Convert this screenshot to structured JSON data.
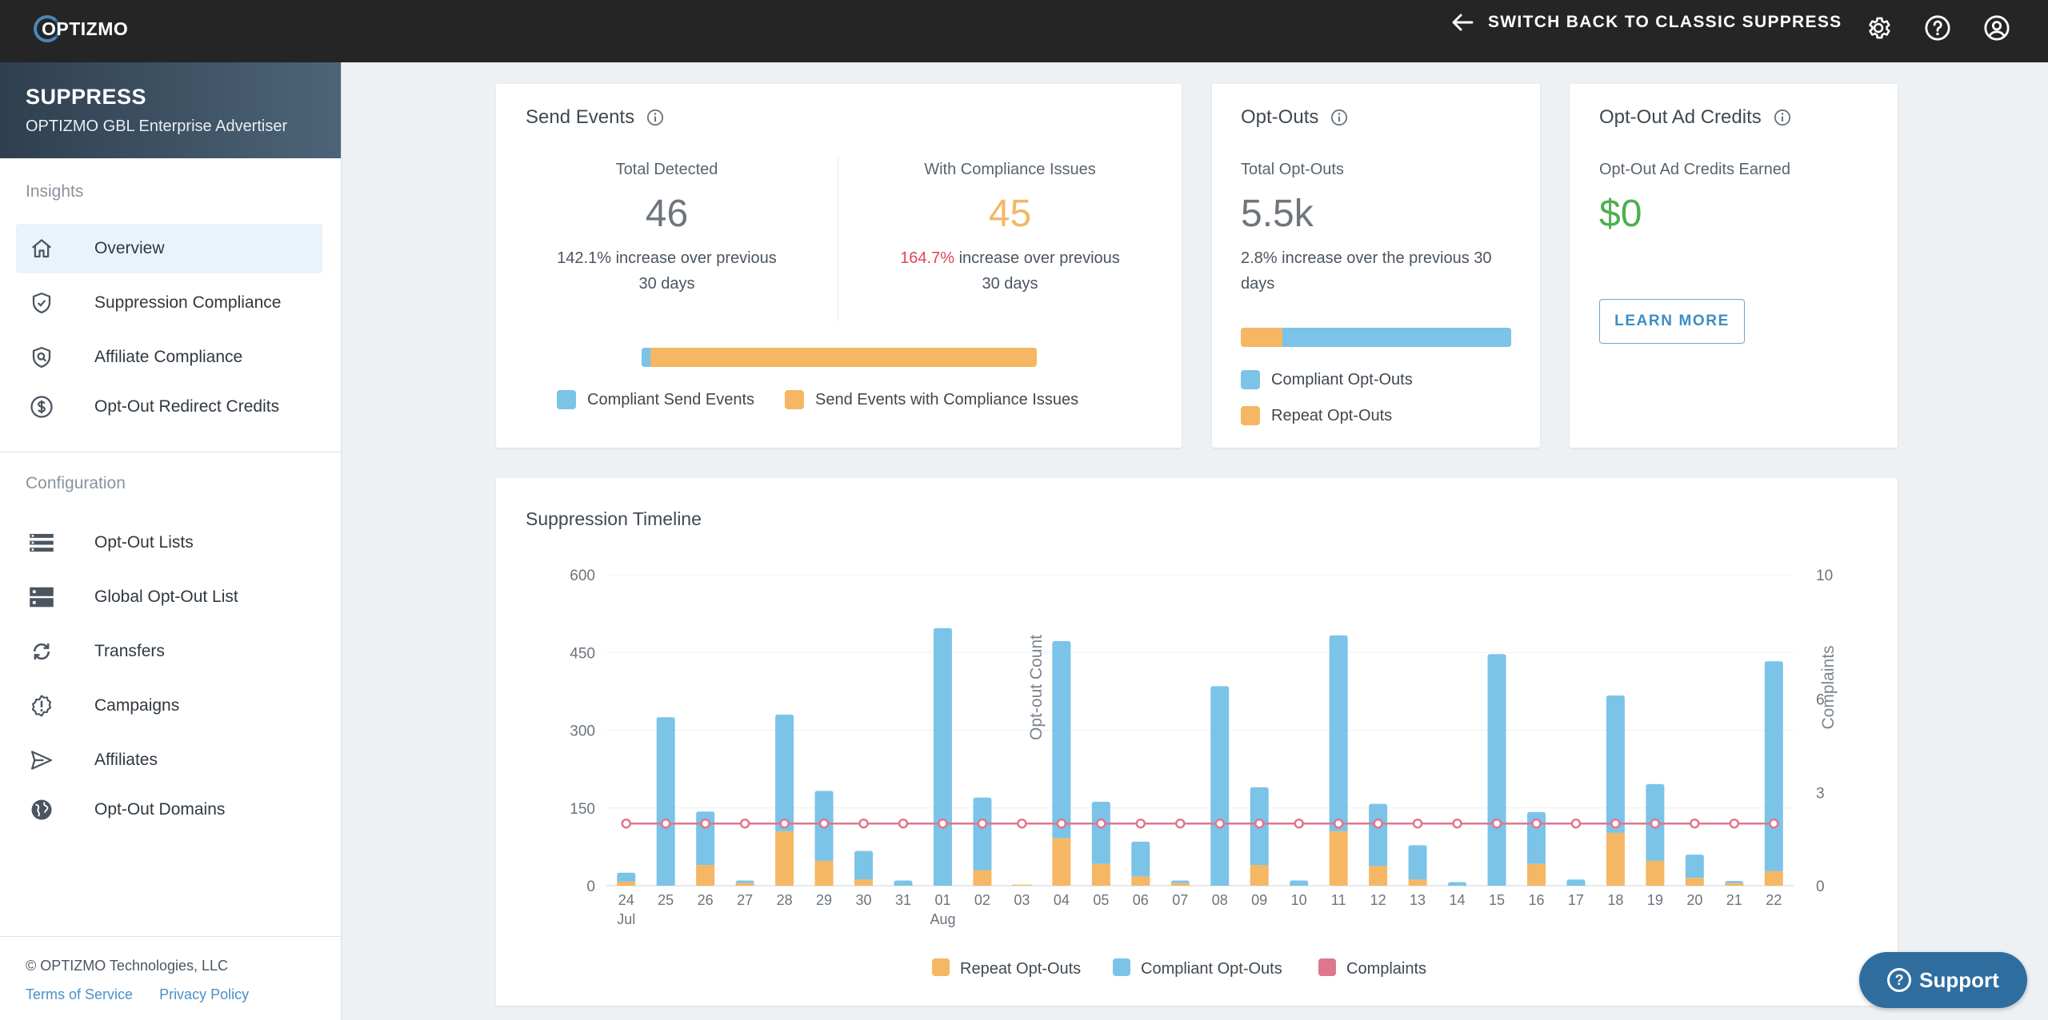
{
  "topbar": {
    "logo_text": "OPTIZMO",
    "switch_back_label": "SWITCH BACK TO CLASSIC SUPPRESS",
    "icons": [
      "arrow-left-icon",
      "gear-icon",
      "help-icon",
      "account-icon"
    ]
  },
  "sidebar": {
    "title": "SUPPRESS",
    "subtitle": "OPTIZMO GBL Enterprise Advertiser",
    "insights_label": "Insights",
    "insights_items": [
      {
        "label": "Overview",
        "icon": "home-icon",
        "active": true
      },
      {
        "label": "Suppression Compliance",
        "icon": "shield-check-icon"
      },
      {
        "label": "Affiliate Compliance",
        "icon": "shield-search-icon"
      },
      {
        "label": "Opt-Out Redirect Credits",
        "icon": "dollar-circle-icon"
      }
    ],
    "configuration_label": "Configuration",
    "configuration_items": [
      {
        "label": "Opt-Out Lists",
        "icon": "list-icon"
      },
      {
        "label": "Global Opt-Out List",
        "icon": "server-icon"
      },
      {
        "label": "Transfers",
        "icon": "sync-icon"
      },
      {
        "label": "Campaigns",
        "icon": "alert-badge-icon"
      },
      {
        "label": "Affiliates",
        "icon": "send-icon"
      },
      {
        "label": "Opt-Out Domains",
        "icon": "globe-icon"
      }
    ],
    "copyright": "© OPTIZMO Technologies, LLC",
    "terms_label": "Terms of Service",
    "privacy_label": "Privacy Policy"
  },
  "send_events": {
    "title": "Send Events",
    "total_detected_label": "Total Detected",
    "total_detected_value": "46",
    "total_detected_desc_line1": "142.1% increase over previous",
    "total_detected_desc_line2": "30 days",
    "compliance_issues_label": "With Compliance Issues",
    "compliance_issues_value": "45",
    "compliance_issues_pct": "164.7%",
    "compliance_issues_desc_line1_rest": " increase over previous",
    "compliance_issues_desc_line2": "30 days",
    "bar_compliant_fraction": 0.022,
    "legend_compliant": "Compliant Send Events",
    "legend_issues": "Send Events with Compliance Issues"
  },
  "opt_outs": {
    "title": "Opt-Outs",
    "total_label": "Total Opt-Outs",
    "total_value": "5.5k",
    "desc_line1": "2.8% increase over the previous 30",
    "desc_line2": "days",
    "bar_repeat_fraction": 0.155,
    "legend_compliant": "Compliant Opt-Outs",
    "legend_repeat": "Repeat Opt-Outs"
  },
  "ad_credits": {
    "title": "Opt-Out Ad Credits",
    "earned_label": "Opt-Out Ad Credits Earned",
    "earned_value": "$0",
    "learn_more_label": "LEARN MORE"
  },
  "support": {
    "label": "Support"
  },
  "colors": {
    "blue": "#7cc3e8",
    "orange": "#f5b763",
    "pink": "#e0768e",
    "red_text": "#e0445a",
    "green": "#4caf50"
  },
  "chart_data": {
    "type": "bar",
    "title": "Suppression Timeline",
    "ylabel": "Opt-out Count",
    "y2label": "Complaints",
    "ylim": [
      0,
      600
    ],
    "y_ticks": [
      0,
      150,
      300,
      450,
      600
    ],
    "y2lim": [
      0,
      10
    ],
    "y2_ticks": [
      0,
      3,
      6,
      10
    ],
    "stacked": true,
    "grid": true,
    "legend_position": "bottom",
    "categories": [
      "24",
      "25",
      "26",
      "27",
      "28",
      "29",
      "30",
      "31",
      "01",
      "02",
      "03",
      "04",
      "05",
      "06",
      "07",
      "08",
      "09",
      "10",
      "11",
      "12",
      "13",
      "14",
      "15",
      "16",
      "17",
      "18",
      "19",
      "20",
      "21",
      "22"
    ],
    "month_labels": [
      {
        "index": 0,
        "label": "Jul"
      },
      {
        "index": 8,
        "label": "Aug"
      }
    ],
    "series": [
      {
        "name": "Repeat Opt-Outs",
        "kind": "bar",
        "color": "#f5b763",
        "values": [
          8,
          0,
          40,
          5,
          105,
          48,
          12,
          0,
          0,
          30,
          2,
          92,
          42,
          18,
          5,
          0,
          40,
          0,
          105,
          38,
          12,
          0,
          0,
          42,
          0,
          102,
          48,
          15,
          5,
          28
        ]
      },
      {
        "name": "Compliant Opt-Outs",
        "kind": "bar",
        "color": "#7cc3e8",
        "values": [
          17,
          325,
          103,
          5,
          225,
          135,
          55,
          10,
          497,
          140,
          0,
          380,
          120,
          67,
          5,
          385,
          150,
          10,
          378,
          120,
          66,
          7,
          447,
          100,
          12,
          265,
          148,
          45,
          4,
          405
        ]
      },
      {
        "name": "Complaints",
        "kind": "line",
        "axis": "y2",
        "color": "#e0768e",
        "values": [
          2,
          2,
          2,
          2,
          2,
          2,
          2,
          2,
          2,
          2,
          2,
          2,
          2,
          2,
          2,
          2,
          2,
          2,
          2,
          2,
          2,
          2,
          2,
          2,
          2,
          2,
          2,
          2,
          2,
          2
        ]
      }
    ]
  }
}
